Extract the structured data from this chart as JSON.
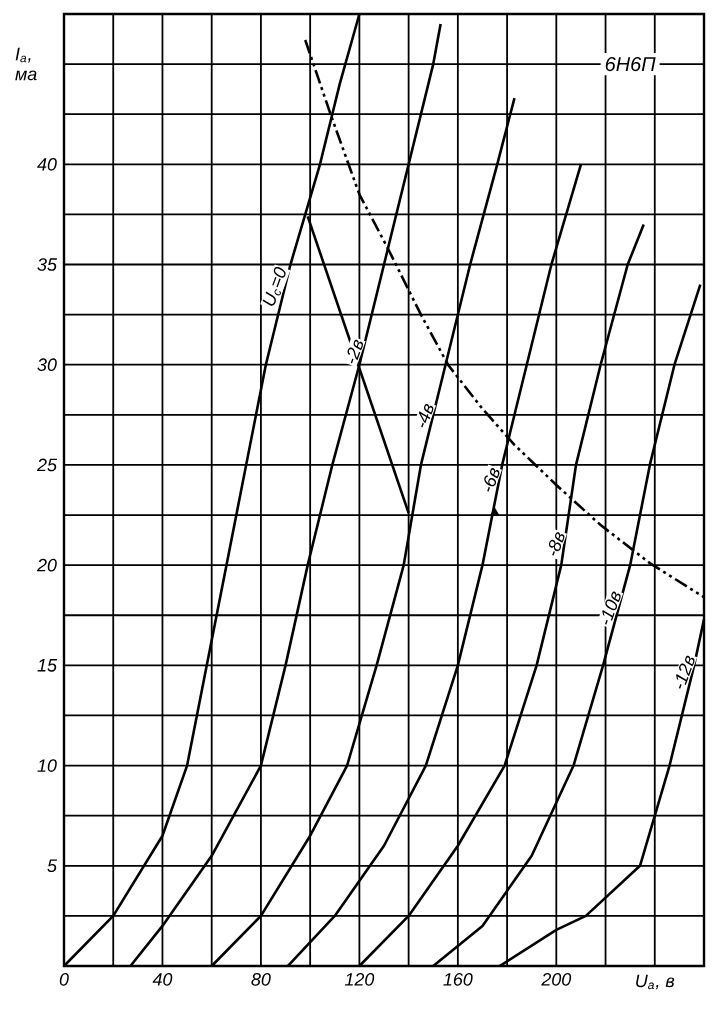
{
  "chart_data": {
    "type": "line",
    "title": "6Н6П",
    "xlabel": "U$_{а}$, в",
    "ylabel": "I$_{а}$, ма",
    "xlim": [
      0,
      260
    ],
    "ylim": [
      0,
      47.5
    ],
    "xticks": [
      0,
      {
        "value": 20,
        "label": null
      },
      40,
      {
        "value": 60,
        "label": null
      },
      80,
      {
        "value": 100,
        "label": null
      },
      120,
      {
        "value": 140,
        "label": null
      },
      160,
      {
        "value": 180,
        "label": null
      },
      200,
      {
        "value": 220,
        "label": null
      },
      {
        "value": 240,
        "label": null
      },
      {
        "value": 260,
        "label": null
      }
    ],
    "yticks": [
      {
        "value": 2.5,
        "label": null
      },
      5,
      {
        "value": 7.5,
        "label": null
      },
      10,
      {
        "value": 12.5,
        "label": null
      },
      15,
      {
        "value": 17.5,
        "label": null
      },
      20,
      {
        "value": 22.5,
        "label": null
      },
      25,
      {
        "value": 27.5,
        "label": null
      },
      30,
      {
        "value": 32.5,
        "label": null
      },
      35,
      {
        "value": 37.5,
        "label": null
      },
      40,
      {
        "value": 42.5,
        "label": null
      },
      {
        "value": 45,
        "label": null
      }
    ],
    "grid": true,
    "series": [
      {
        "name": "U$_{с}$=0",
        "color": "#000000",
        "x": [
          0,
          20,
          40,
          50,
          58,
          66,
          74,
          82,
          92,
          104,
          112,
          120
        ],
        "values": [
          0,
          2.5,
          6.5,
          10,
          15,
          20,
          25,
          30,
          35,
          40,
          44,
          47.5
        ]
      },
      {
        "name": "-2в",
        "color": "#000000",
        "x": [
          27,
          40,
          60,
          80,
          90,
          99,
          109,
          120,
          130,
          140,
          150,
          153
        ],
        "values": [
          0,
          2,
          5.5,
          10,
          15,
          20,
          25,
          30,
          35,
          40,
          45,
          47
        ]
      },
      {
        "name": "-4в",
        "color": "#000000",
        "x": [
          60,
          80,
          100,
          115,
          127,
          138,
          145,
          155,
          165,
          176,
          183
        ],
        "values": [
          0,
          2.5,
          6.5,
          10,
          15,
          20,
          25,
          30,
          35,
          40,
          43.3
        ]
      },
      {
        "name": "-6в",
        "color": "#000000",
        "x": [
          91,
          110,
          130,
          147,
          160,
          170,
          178,
          188,
          198,
          210
        ],
        "values": [
          0,
          2.5,
          6,
          10,
          15,
          20,
          25,
          30,
          35,
          40
        ]
      },
      {
        "name": "-8в",
        "color": "#000000",
        "x": [
          120,
          140,
          160,
          179,
          192,
          202,
          208,
          218,
          229,
          235.5
        ],
        "values": [
          0,
          2.5,
          6,
          10,
          15,
          20,
          25,
          30,
          35,
          37
        ]
      },
      {
        "name": "-10в",
        "color": "#000000",
        "x": [
          150,
          170,
          190,
          207,
          219,
          230,
          238,
          248,
          258.5
        ],
        "values": [
          0,
          2,
          5.5,
          10,
          15,
          20,
          25,
          30,
          34
        ]
      },
      {
        "name": "-12в",
        "color": "#000000",
        "x": [
          177,
          200,
          212,
          234,
          246,
          256,
          260
        ],
        "values": [
          0,
          1.8,
          2.5,
          5,
          10,
          15,
          17.3
        ]
      },
      {
        "color": "#000000",
        "line_style": "dashdot",
        "x": [
          98,
          108,
          120,
          132,
          145,
          156,
          170,
          183,
          200,
          218,
          238,
          260
        ],
        "values": [
          46.2,
          42.6,
          38.5,
          35.7,
          32.5,
          30,
          27.8,
          26,
          24,
          22,
          20.1,
          18.4
        ]
      },
      {
        "color": "#000000",
        "x": [
          99,
          140
        ],
        "values": [
          37.4,
          22.6
        ]
      },
      {
        "type": "scatter",
        "marker": "triangle",
        "color": "#000000",
        "x": [
          175
        ],
        "values": [
          22.6
        ]
      }
    ]
  }
}
